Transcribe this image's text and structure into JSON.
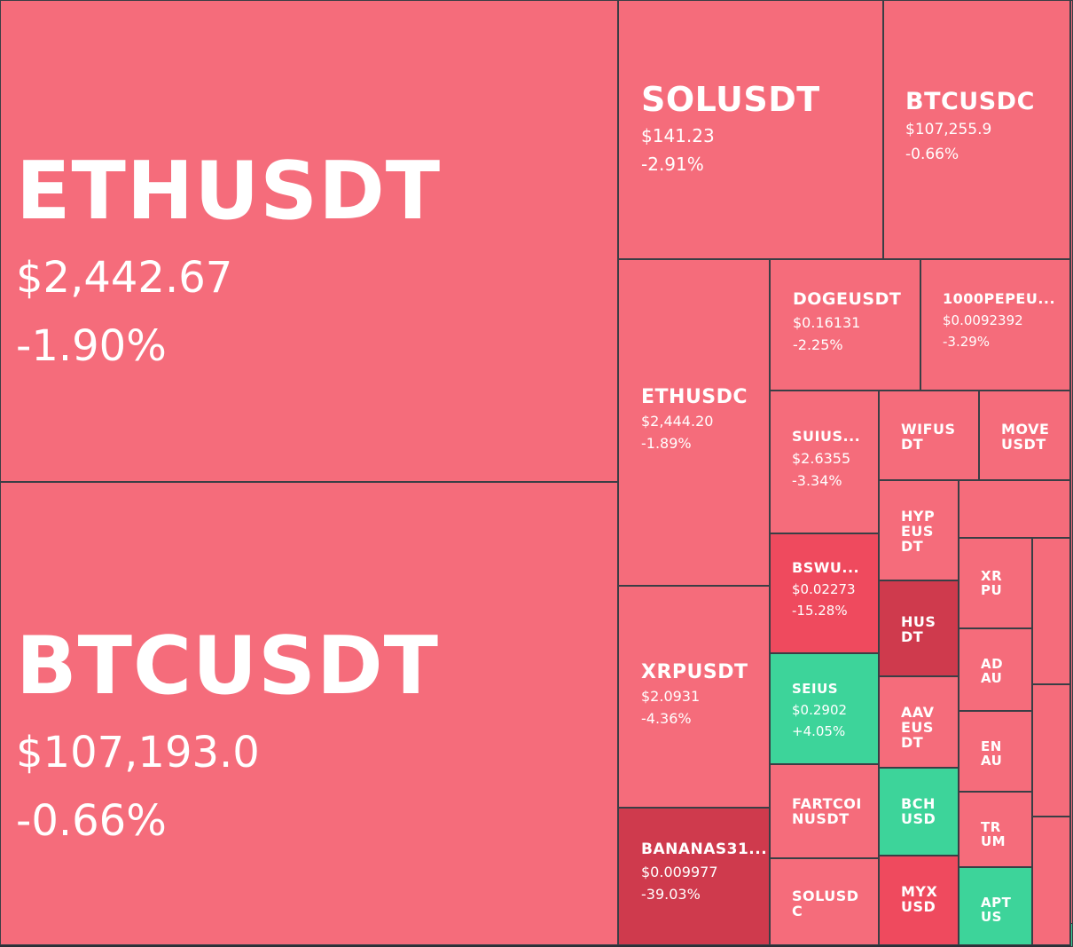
{
  "chart_data": {
    "type": "treemap",
    "colors": {
      "down": "#f56c7b",
      "down_strong": "#ef4a5e",
      "down_extreme": "#cf3a4d",
      "up": "#3dd49a",
      "border": "#3a3e45"
    },
    "tiles": [
      {
        "symbol": "ETHUSDT",
        "price": "$2,442.67",
        "change": "-1.90%",
        "change_value": -1.9
      },
      {
        "symbol": "BTCUSDT",
        "price": "$107,193.0",
        "change": "-0.66%",
        "change_value": -0.66
      },
      {
        "symbol": "SOLUSDT",
        "price": "$141.23",
        "change": "-2.91%",
        "change_value": -2.91
      },
      {
        "symbol": "BTCUSDC",
        "price": "$107,255.9",
        "change": "-0.66%",
        "change_value": -0.66
      },
      {
        "symbol": "ETHUSDC",
        "price": "$2,444.20",
        "change": "-1.89%",
        "change_value": -1.89
      },
      {
        "symbol": "DOGEUSDT",
        "price": "$0.16131",
        "change": "-2.25%",
        "change_value": -2.25
      },
      {
        "symbol": "1000PEPEU...",
        "price": "$0.0092392",
        "change": "-3.29%",
        "change_value": -3.29
      },
      {
        "symbol": "SUIUS...",
        "price": "$2.6355",
        "change": "-3.34%",
        "change_value": -3.34
      },
      {
        "symbol": "WIFUS\nDT",
        "change_value": -3
      },
      {
        "symbol": "MOVE\nUSDT",
        "change_value": -3
      },
      {
        "symbol": "XRPUSDT",
        "price": "$2.0931",
        "change": "-4.36%",
        "change_value": -4.36
      },
      {
        "symbol": "BSWU...",
        "price": "$0.02273",
        "change": "-15.28%",
        "change_value": -15.28
      },
      {
        "symbol": "HYP\nEUS\nDT",
        "change_value": -3
      },
      {
        "symbol": "XR\nPU",
        "change_value": -3
      },
      {
        "symbol": "HUS\nDT",
        "change_value": -20
      },
      {
        "symbol": "SEIUS",
        "price": "$0.2902",
        "change": "+4.05%",
        "change_value": 4.05
      },
      {
        "symbol": "AD\nAU",
        "change_value": -3
      },
      {
        "symbol": "AAV\nEUS\nDT",
        "change_value": -3
      },
      {
        "symbol": "EN\nAU",
        "change_value": -3
      },
      {
        "symbol": "FARTCOI\nNUSDT",
        "change_value": -3
      },
      {
        "symbol": "BCH\nUSD",
        "change_value": 2
      },
      {
        "symbol": "TR\nUM",
        "change_value": -3
      },
      {
        "symbol": "BANANAS31...",
        "price": "$0.009977",
        "change": "-39.03%",
        "change_value": -39.03
      },
      {
        "symbol": "SOLUSD\nC",
        "change_value": -3
      },
      {
        "symbol": "MYX\nUSD",
        "change_value": -10
      },
      {
        "symbol": "APT\nUS",
        "change_value": 2
      },
      {
        "symbol": "",
        "change_value": -3
      },
      {
        "symbol": "",
        "change_value": -3
      },
      {
        "symbol": "",
        "change_value": -3
      },
      {
        "symbol": "",
        "change_value": -3
      },
      {
        "symbol": "",
        "change_value": -3
      },
      {
        "symbol": "",
        "change_value": 2
      }
    ]
  }
}
